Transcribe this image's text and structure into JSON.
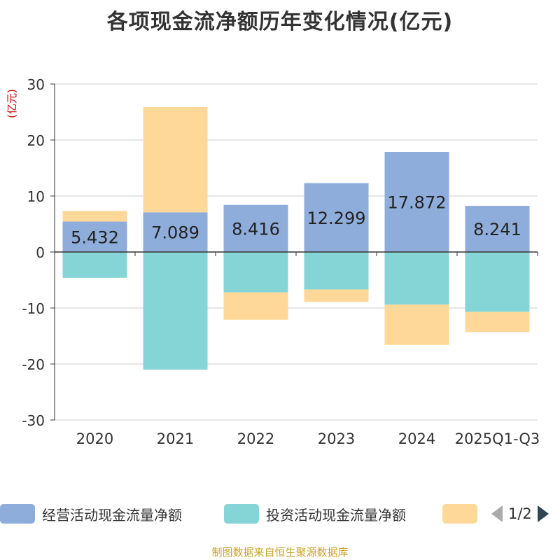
{
  "title": "各项现金流净额历年变化情况(亿元)",
  "source": "制图数据来自恒生聚源数据库",
  "legend": {
    "items": [
      {
        "label": "经营活动现金流量净额",
        "color": "#8eaddb"
      },
      {
        "label": "投资活动现金流量净额",
        "color": "#86d5d6"
      },
      {
        "label": "",
        "color": "#fdd898"
      }
    ],
    "page": "1/2",
    "prev_icon": "triangle-left-icon",
    "next_icon": "triangle-right-icon"
  },
  "chart_data": {
    "type": "bar",
    "stacked": true,
    "title": "各项现金流净额历年变化情况(亿元)",
    "ylabel": "(亿元)",
    "ylim": [
      -30,
      30
    ],
    "yticks": [
      30,
      20,
      10,
      0,
      -10,
      -20,
      -30
    ],
    "grid": true,
    "categories": [
      "2020",
      "2021",
      "2022",
      "2023",
      "2024",
      "2025Q1-Q3"
    ],
    "series": [
      {
        "name": "经营活动现金流量净额",
        "color": "#8eaddb",
        "values": [
          5.432,
          7.089,
          8.416,
          12.299,
          17.872,
          8.241
        ],
        "labels": [
          "5.432",
          "7.089",
          "8.416",
          "12.299",
          "17.872",
          "8.241"
        ]
      },
      {
        "name": "投资活动现金流量净额",
        "color": "#86d5d6",
        "values": [
          -4.6,
          -21.0,
          -7.2,
          -6.7,
          -9.4,
          -10.7
        ]
      },
      {
        "name": "",
        "color": "#fdd898",
        "values": [
          1.9,
          18.8,
          -4.9,
          -2.2,
          -7.2,
          -3.6
        ]
      }
    ]
  }
}
